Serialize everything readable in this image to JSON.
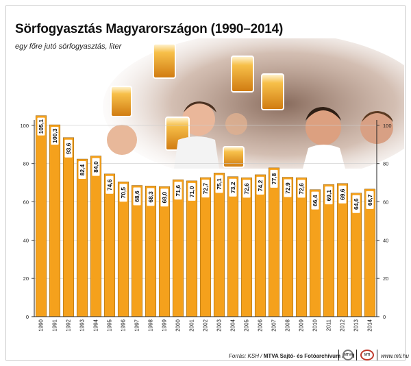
{
  "title": "Sörfogyasztás Magyarországon (1990–2014)",
  "subtitle": "egy főre jutó sörfogyasztás, liter",
  "footer": {
    "source": "Forrás: KSH /",
    "org": "MTVA Sajtó- és Fotóarchívum / MTI",
    "site": "www.mti.hu",
    "logo_mtva": "MTVA",
    "logo_mti": "MTI"
  },
  "colors": {
    "bar": "#f5a11c",
    "bar_edge": "#8a5a0c",
    "label_box": "#ffffff",
    "axis": "#222222",
    "grid": "#cccccc"
  },
  "photo": {
    "description_icon": "oktoberfest-crowd-photo"
  },
  "chart_data": {
    "type": "bar",
    "title": "Sörfogyasztás Magyarországon (1990–2014)",
    "subtitle": "egy főre jutó sörfogyasztás, liter",
    "categories": [
      "1990",
      "1991",
      "1992",
      "1993",
      "1994",
      "1995",
      "1996",
      "1997",
      "1998",
      "1999",
      "2000",
      "2001",
      "2002",
      "2003",
      "2004",
      "2005",
      "2006",
      "2007",
      "2008",
      "2009",
      "2010",
      "2011",
      "2012",
      "2013",
      "2014"
    ],
    "values": [
      105.1,
      100.3,
      93.6,
      82.4,
      84.0,
      74.6,
      70.5,
      68.6,
      68.3,
      68.0,
      71.6,
      71.0,
      72.7,
      75.1,
      73.2,
      72.6,
      74.2,
      77.8,
      72.9,
      72.6,
      66.4,
      69.1,
      69.6,
      64.6,
      66.7
    ],
    "value_labels": [
      "105,1",
      "100,3",
      "93,6",
      "82,4",
      "84,0",
      "74,6",
      "70,5",
      "68,6",
      "68,3",
      "68,0",
      "71,6",
      "71,0",
      "72,7",
      "75,1",
      "73,2",
      "72,6",
      "74,2",
      "77,8",
      "72,9",
      "72,6",
      "66,4",
      "69,1",
      "69,6",
      "64,6",
      "66,7"
    ],
    "y_ticks": [
      0,
      20,
      40,
      60,
      80,
      100
    ],
    "ylim": [
      0,
      110
    ],
    "grid": true,
    "xlabel": "",
    "ylabel": ""
  }
}
